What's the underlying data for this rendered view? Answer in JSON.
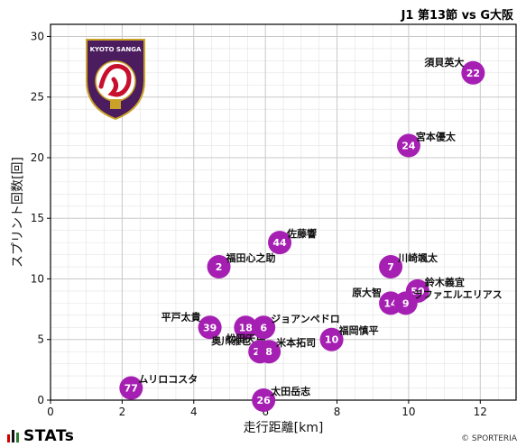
{
  "header": {
    "title": "J1 第13節 vs G大阪"
  },
  "footer": {
    "brand": "STATs",
    "credit": "© SPORTERIA",
    "bar_colors": [
      "#d00000",
      "#111111",
      "#2e7d32"
    ]
  },
  "logo": {
    "text": "KYOTO SANGA",
    "icon": "kyoto-sanga-crest"
  },
  "colors": {
    "point": "#a51fb3",
    "grid": "#c9c9c9",
    "axis": "#000000"
  },
  "chart_data": {
    "type": "scatter",
    "title": "",
    "xlabel": "走行距離[km]",
    "ylabel": "スプリント回数[回]",
    "xlim": [
      0,
      13
    ],
    "ylim": [
      0,
      31
    ],
    "xticks": [
      0,
      2,
      4,
      6,
      8,
      10,
      12
    ],
    "yticks": [
      0,
      5,
      10,
      15,
      20,
      25,
      30
    ],
    "grid": true,
    "points": [
      {
        "number": "22",
        "name": "須貝英大",
        "x": 11.8,
        "y": 27,
        "label_side": "left"
      },
      {
        "number": "24",
        "name": "宮本優太",
        "x": 10.0,
        "y": 21,
        "label_side": "right"
      },
      {
        "number": "44",
        "name": "佐藤響",
        "x": 6.4,
        "y": 13,
        "label_side": "right"
      },
      {
        "number": "2",
        "name": "福田心之助",
        "x": 4.7,
        "y": 11,
        "label_side": "right"
      },
      {
        "number": "7",
        "name": "川崎颯太",
        "x": 9.5,
        "y": 11,
        "label_side": "right"
      },
      {
        "number": "50",
        "name": "鈴木義宜",
        "x": 10.25,
        "y": 9,
        "label_side": "right"
      },
      {
        "number": "14",
        "name": "原大智",
        "x": 9.5,
        "y": 8,
        "label_side": "left"
      },
      {
        "number": "9",
        "name": "ラファエルエリアス",
        "x": 9.92,
        "y": 8,
        "label_side": "right"
      },
      {
        "number": "39",
        "name": "平戸太貴",
        "x": 4.45,
        "y": 6,
        "label_side": "left"
      },
      {
        "number": "18",
        "name": "松田天馬",
        "x": 5.45,
        "y": 6,
        "label_side": "below"
      },
      {
        "number": "6",
        "name": "ジョアンペドロ",
        "x": 5.95,
        "y": 6,
        "label_side": "right"
      },
      {
        "number": "10",
        "name": "福岡慎平",
        "x": 7.85,
        "y": 5,
        "label_side": "right"
      },
      {
        "number": "29",
        "name": "奥川雅也",
        "x": 5.85,
        "y": 4,
        "label_side": "left"
      },
      {
        "number": "8",
        "name": "米本拓司",
        "x": 6.1,
        "y": 4,
        "label_side": "right"
      },
      {
        "number": "77",
        "name": "ムリロコスタ",
        "x": 2.25,
        "y": 1,
        "label_side": "right"
      },
      {
        "number": "26",
        "name": "太田岳志",
        "x": 5.95,
        "y": 0,
        "label_side": "right"
      }
    ]
  }
}
